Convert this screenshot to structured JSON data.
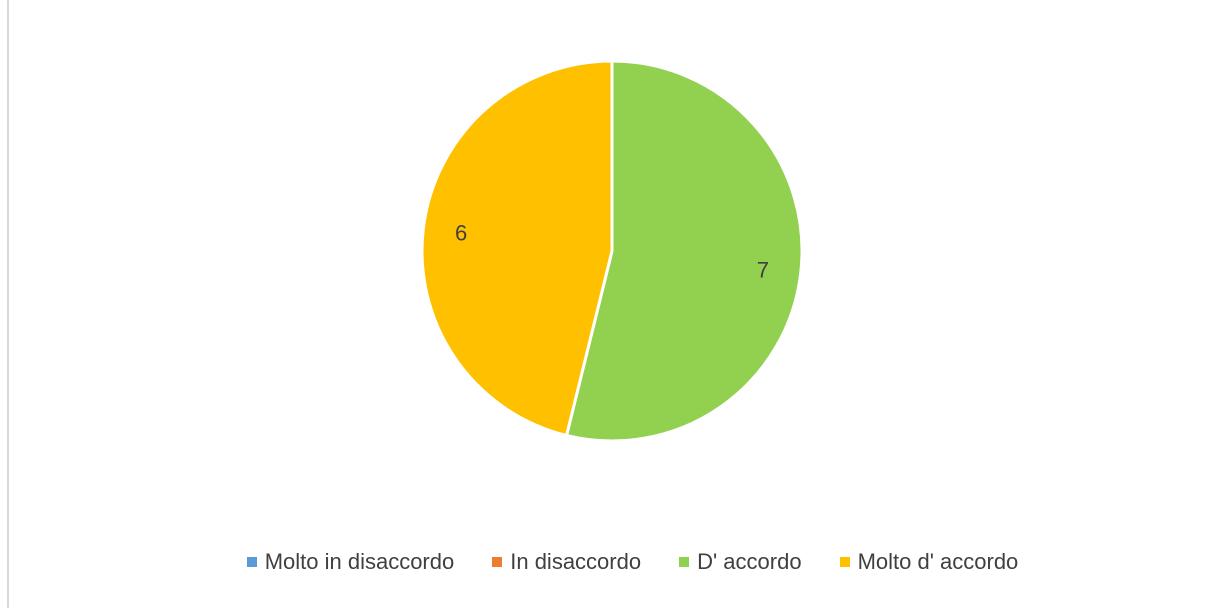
{
  "chart_data": {
    "type": "pie",
    "categories": [
      "Molto in disaccordo",
      "In disaccordo",
      "D' accordo",
      "Molto d' accordo"
    ],
    "values": [
      0,
      0,
      7,
      6
    ],
    "data_labels": [
      "",
      "",
      "7",
      "6"
    ],
    "colors": [
      "#5b9bd5",
      "#ed7d31",
      "#92d050",
      "#ffc000"
    ],
    "legend_position": "bottom",
    "title": ""
  }
}
